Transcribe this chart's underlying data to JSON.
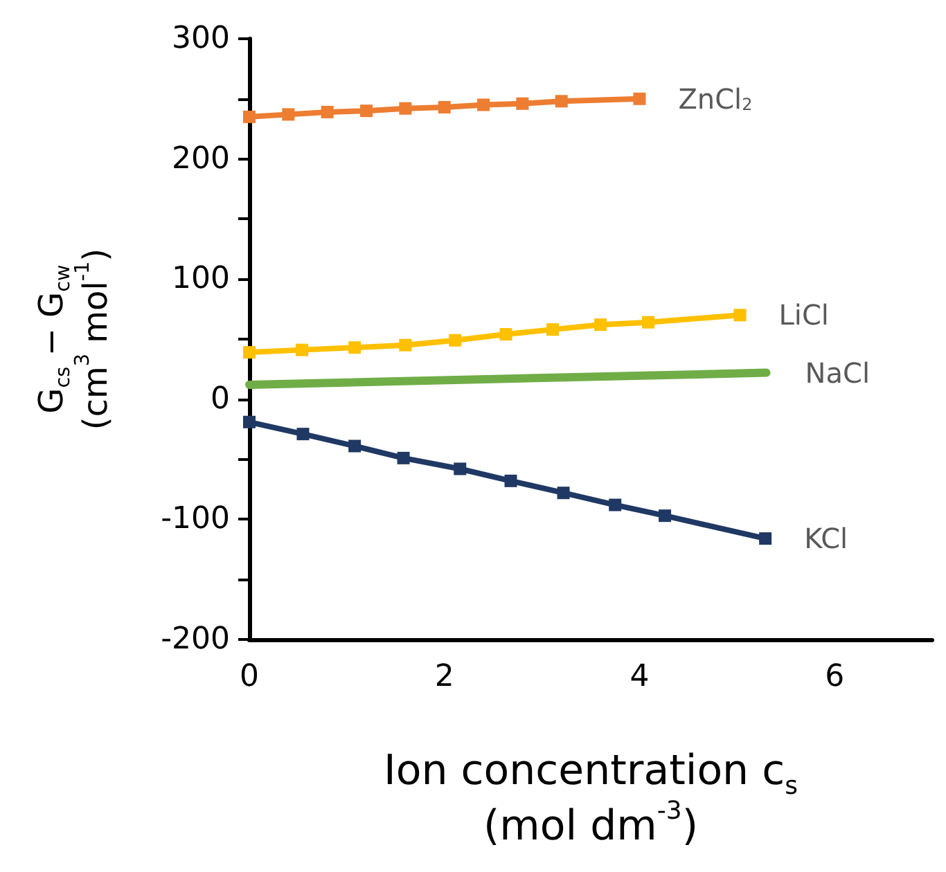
{
  "chart_data": {
    "type": "line",
    "xlabel": "Ion concentration c$_{s}$\n(mol dm$^{-3}$)",
    "ylabel": "G$_{cs}$ − G$_{cw}$\n(cm$^{3}$ mol$^{-1}$)",
    "xlim": [
      0,
      7
    ],
    "xticks": [
      0,
      2,
      4,
      6
    ],
    "ylim": [
      -200,
      300
    ],
    "yticks": [
      -200,
      {
        "value": -150,
        "label": null
      },
      -100,
      {
        "value": -50,
        "label": null
      },
      0,
      {
        "value": 50,
        "label": null
      },
      100,
      {
        "value": 150,
        "label": null
      },
      200,
      {
        "value": 250,
        "label": null
      },
      300
    ],
    "grid": false,
    "legend": false,
    "line_style": "solid",
    "series": [
      {
        "name": "ZnCl$_{2}$",
        "color": "#ed7d31",
        "marker": "square",
        "x": [
          0,
          0.4,
          0.8,
          1.2,
          1.6,
          2.0,
          2.4,
          2.8,
          3.2,
          4.0
        ],
        "values": [
          235,
          237,
          239,
          240,
          242,
          243,
          245,
          246,
          248,
          250
        ]
      },
      {
        "name": "LiCl",
        "color": "#ffc000",
        "marker": "square",
        "x": [
          0,
          0.54,
          1.08,
          1.6,
          2.11,
          2.63,
          3.11,
          3.6,
          4.09,
          5.03
        ],
        "values": [
          39,
          41,
          43,
          45,
          49,
          54,
          58,
          62,
          64,
          70
        ]
      },
      {
        "name": "NaCl",
        "color": "#70ad47",
        "marker": "none",
        "x": [
          0,
          5.3
        ],
        "values": [
          12,
          22
        ]
      },
      {
        "name": "KCl",
        "color": "#1f3864",
        "marker": "square",
        "x": [
          0,
          0.55,
          1.08,
          1.58,
          2.16,
          2.68,
          3.22,
          3.75,
          4.26,
          5.29
        ],
        "values": [
          -19,
          -29,
          -39,
          -49,
          -58,
          -68,
          -78,
          -88,
          -97,
          -116
        ]
      }
    ]
  }
}
